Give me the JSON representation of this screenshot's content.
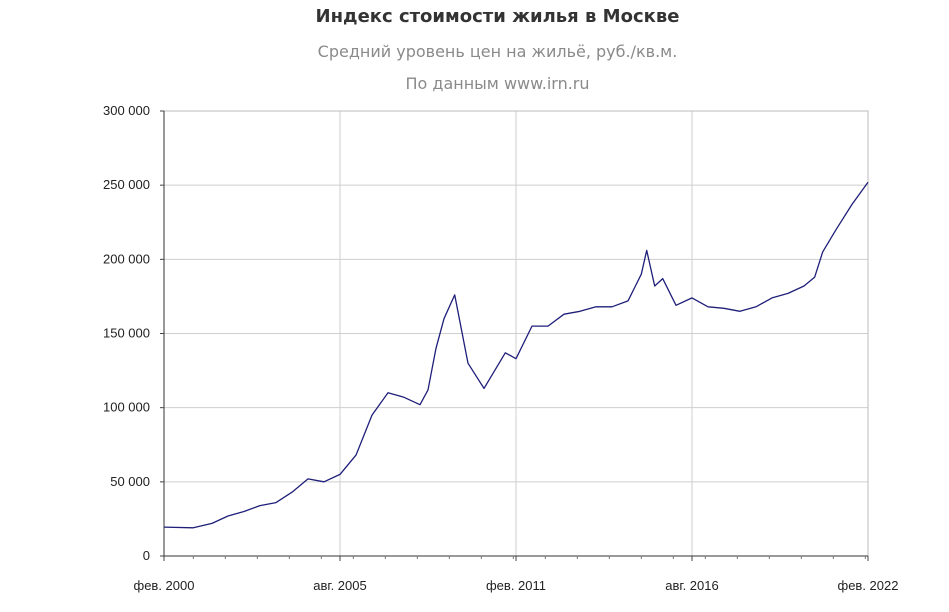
{
  "chart_data": {
    "type": "line",
    "title": "Индекс стоимости жилья в Москве",
    "subtitle": "Средний уровень цен на жильё, руб./кв.м.",
    "source": "По данным www.irn.ru",
    "xlabel": "",
    "ylabel": "",
    "xlim": [
      "2000-02",
      "2022-02"
    ],
    "ylim": [
      0,
      300000
    ],
    "y_ticks": [
      0,
      50000,
      100000,
      150000,
      200000,
      250000,
      300000
    ],
    "y_tick_labels": [
      "0",
      "50 000",
      "100 000",
      "150 000",
      "200 000",
      "250 000",
      "300 000"
    ],
    "x_ticks": [
      "2000-02",
      "2005-08",
      "2011-02",
      "2016-08",
      "2022-02"
    ],
    "x_tick_labels": [
      "фев. 2000",
      "авг. 2005",
      "фев. 2011",
      "авг. 2016",
      "фев. 2022"
    ],
    "grid": true,
    "color": "#1f1f7a",
    "x": [
      "2000-02",
      "2001-01",
      "2001-08",
      "2002-02",
      "2002-08",
      "2003-02",
      "2003-08",
      "2004-02",
      "2004-08",
      "2005-02",
      "2005-08",
      "2006-02",
      "2006-08",
      "2007-02",
      "2007-08",
      "2008-02",
      "2008-05",
      "2008-08",
      "2008-11",
      "2009-03",
      "2009-08",
      "2010-02",
      "2010-06",
      "2010-10",
      "2011-02",
      "2011-08",
      "2012-02",
      "2012-08",
      "2013-02",
      "2013-08",
      "2014-02",
      "2014-08",
      "2015-01",
      "2015-03",
      "2015-06",
      "2015-09",
      "2016-02",
      "2016-08",
      "2017-02",
      "2017-08",
      "2018-02",
      "2018-08",
      "2019-02",
      "2019-08",
      "2020-02",
      "2020-06",
      "2020-09",
      "2021-02",
      "2021-08",
      "2022-02"
    ],
    "values": [
      19500,
      19000,
      22000,
      27000,
      30000,
      34000,
      36000,
      43000,
      52000,
      50000,
      55000,
      68000,
      95000,
      110000,
      107000,
      102000,
      112000,
      140000,
      160000,
      176000,
      130000,
      113000,
      125000,
      137000,
      133000,
      155000,
      155000,
      163000,
      165000,
      168000,
      168000,
      172000,
      190000,
      206000,
      182000,
      187000,
      169000,
      174000,
      168000,
      167000,
      165000,
      168000,
      174000,
      177000,
      182000,
      188000,
      205000,
      220000,
      237000,
      252000
    ]
  }
}
